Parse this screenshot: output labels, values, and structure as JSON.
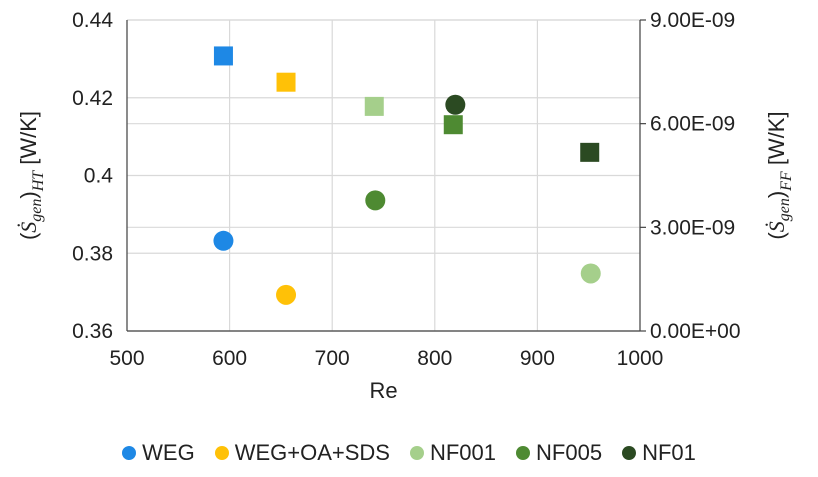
{
  "chart_data": {
    "type": "scatter",
    "xlabel": "Re",
    "ylabel_left": "(Ṡgen)HT [W/K]",
    "ylabel_left_parts": {
      "open": "(",
      "s": "Ṡ",
      "sub": "gen",
      "close": ")",
      "subsub": "HT",
      "unit": "[W/K]"
    },
    "ylabel_right": "(Ṡgen)FF [W/K]",
    "ylabel_right_parts": {
      "open": "(",
      "s": "Ṡ",
      "sub": "gen",
      "close": ")",
      "subsub": "FF",
      "unit": "[W/K]"
    },
    "xlim": [
      500,
      1000
    ],
    "ylim_left": [
      0.36,
      0.44
    ],
    "ylim_right": [
      0,
      9e-09
    ],
    "x_ticks": [
      "500",
      "600",
      "700",
      "800",
      "900",
      "1000"
    ],
    "y_ticks_left": [
      "0.36",
      "0.38",
      "0.4",
      "0.42",
      "0.44"
    ],
    "y_ticks_right": [
      "0.00E+00",
      "3.00E-09",
      "6.00E-09",
      "9.00E-09"
    ],
    "grid": true,
    "legend_position": "bottom",
    "series": [
      {
        "name": "WEG",
        "color": "#1e88e5",
        "x": 594,
        "ht": 0.3832,
        "ff": 7.96e-09
      },
      {
        "name": "WEG+OA+SDS",
        "color": "#ffc107",
        "x": 655,
        "ht": 0.3693,
        "ff": 7.2e-09
      },
      {
        "name": "NF001",
        "color": "#a5cf8b",
        "x_ht": 952,
        "x_ff": 741,
        "ht": 0.3748,
        "ff": 6.5e-09
      },
      {
        "name": "NF005",
        "color": "#4e8a32",
        "x_ht": 742,
        "x_ff": 818,
        "ht": 0.3936,
        "ff": 5.97e-09
      },
      {
        "name": "NF01",
        "color": "#2b4a22",
        "x_ht": 820,
        "x_ff": 951,
        "ht": 0.4182,
        "ff": 5.17e-09
      }
    ]
  }
}
